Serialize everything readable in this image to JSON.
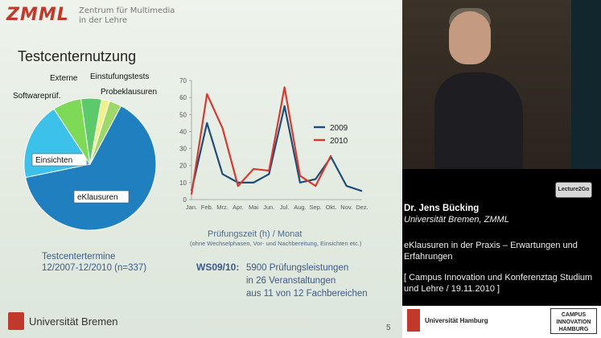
{
  "slide": {
    "logo_mark": "ZMML",
    "logo_sub_1": "Zentrum für Multimedia",
    "logo_sub_2": "in der Lehre",
    "title": "Testcenternutzung",
    "pie_caption_1": "Testcentertermine",
    "pie_caption_2": "12/2007-12/2010 (n=337)",
    "line_caption": "Prüfungszeit (h) / Monat",
    "line_subcaption": "(ohne Wechselphasen, Vor- und Nachbereitung, Einsichten etc.)",
    "ws_label": "WS09/10:",
    "ws_lines": [
      "5900 Prüfungsleistungen",
      "in 26 Veranstaltungen",
      "aus 11 von 12 Fachbereichen"
    ],
    "university": "Universität Bremen",
    "page_number": "5"
  },
  "chart_data": [
    {
      "type": "pie",
      "labels": [
        "eKlausuren",
        "Einsichten",
        "Softwareprüf.",
        "Externe",
        "Einstufungstests",
        "Probeklausuren"
      ],
      "values": [
        64,
        19,
        7,
        5,
        2,
        3
      ],
      "colors": [
        "#1f7fbf",
        "#3cc2ea",
        "#7ed957",
        "#5cc96a",
        "#eff28a",
        "#9fd86a"
      ]
    },
    {
      "type": "line",
      "categories": [
        "Jan.",
        "Feb.",
        "Mrz.",
        "Apr.",
        "Mai",
        "Jun.",
        "Jul.",
        "Aug.",
        "Sep.",
        "Okt.",
        "Nov.",
        "Dez."
      ],
      "series": [
        {
          "name": "2009",
          "color": "#1e4d7a",
          "values": [
            5,
            45,
            15,
            10,
            10,
            15,
            55,
            10,
            12,
            25,
            8,
            5
          ]
        },
        {
          "name": "2010",
          "color": "#d63a2f",
          "values": [
            3,
            62,
            42,
            8,
            18,
            17,
            66,
            14,
            8,
            26,
            null,
            null
          ]
        }
      ],
      "ylim": [
        0,
        70
      ],
      "yticks": [
        "0",
        "10",
        "20",
        "30",
        "40",
        "50",
        "60",
        "70"
      ]
    }
  ],
  "video": {
    "badge": "Lecture2Go"
  },
  "info": {
    "speaker_name": "Dr. Jens Bücking",
    "speaker_affil": "Universität Bremen, ZMML",
    "talk_title": "eKlausuren in der Praxis – Erwartungen und Erfahrungen",
    "event": "[ Campus Innovation und Konferenztag Studium und Lehre / 19.11.2010 ]"
  },
  "footer": {
    "uhh_text": "Universität Hamburg",
    "cih_line1": "CAMPUS",
    "cih_line2": "INNOVATION",
    "cih_line3": "HAMBURG"
  }
}
